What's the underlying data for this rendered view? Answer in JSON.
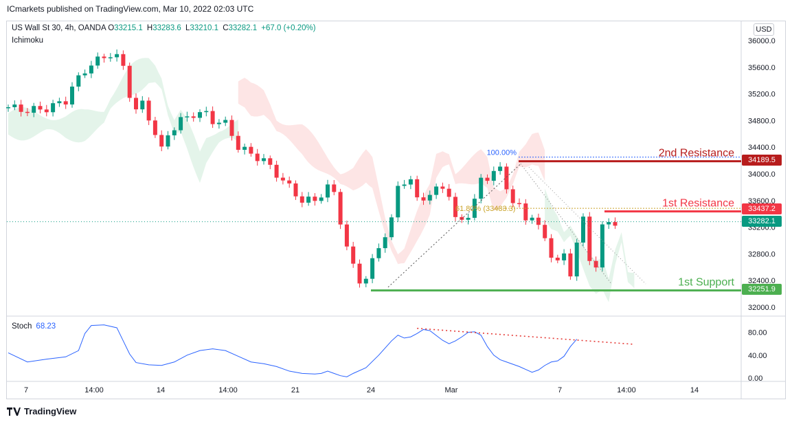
{
  "header": {
    "publisher": "ICmarkets published on TradingView.com, Mar 10, 2022 02:03 UTC"
  },
  "legend": {
    "symbol": "US Wall St 30, 4h, OANDA",
    "o_key": "O",
    "o_val": "33215.1",
    "h_key": "H",
    "h_val": "33283.6",
    "l_key": "L",
    "l_val": "33210.1",
    "c_key": "C",
    "c_val": "33282.1",
    "change": "+67.0 (+0.20%)",
    "indicator": "Ichimoku"
  },
  "currency_button": "USD",
  "stoch": {
    "label": "Stoch",
    "value": "68.23"
  },
  "brand": {
    "name": "TradingView"
  },
  "colors": {
    "up": "#089981",
    "down": "#f23645",
    "cloud_bull": "#dff2e6",
    "cloud_bear": "#fde0e0",
    "resistance2": "#b71c1c",
    "resistance1": "#f23645",
    "support": "#4caf50",
    "stoch_line": "#2962ff",
    "fib_100": "#2962ff",
    "fib_618": "#c9a227"
  },
  "chart_data": [
    {
      "type": "candlestick",
      "title": "US Wall St 30, 4h, OANDA",
      "ylim": [
        31800,
        36200
      ],
      "y_ticks": [
        "36000.0",
        "35600.0",
        "35200.0",
        "34800.0",
        "34400.0",
        "34000.0",
        "33600.0",
        "33200.0",
        "32800.0",
        "32400.0",
        "32000.0"
      ],
      "x_ticks": [
        "7",
        "14:00",
        "14",
        "14:00",
        "21",
        "24",
        "Mar",
        "7",
        "14:00",
        "14"
      ],
      "close_path": [
        [
          0,
          35000
        ],
        [
          3,
          34950
        ],
        [
          6,
          34980
        ],
        [
          9,
          35100
        ],
        [
          10,
          35300
        ],
        [
          12,
          35550
        ],
        [
          13,
          35650
        ],
        [
          15,
          35750
        ],
        [
          16,
          35800
        ],
        [
          17,
          35750
        ],
        [
          18,
          35600
        ],
        [
          19,
          35200
        ],
        [
          20,
          34950
        ],
        [
          21,
          35050
        ],
        [
          22,
          34850
        ],
        [
          23,
          34600
        ],
        [
          24,
          34350
        ],
        [
          25,
          34600
        ],
        [
          27,
          34800
        ],
        [
          29,
          34900
        ],
        [
          31,
          34900
        ],
        [
          32,
          34800
        ],
        [
          34,
          34750
        ],
        [
          35,
          34600
        ],
        [
          36,
          34400
        ],
        [
          38,
          34300
        ],
        [
          40,
          34200
        ],
        [
          42,
          34000
        ],
        [
          44,
          33800
        ],
        [
          46,
          33600
        ],
        [
          48,
          33600
        ],
        [
          50,
          33800
        ],
        [
          51,
          33700
        ],
        [
          52,
          33300
        ],
        [
          53,
          32900
        ],
        [
          54,
          32600
        ],
        [
          55,
          32400
        ],
        [
          56,
          32450
        ],
        [
          58,
          32900
        ],
        [
          60,
          33300
        ],
        [
          61,
          33800
        ],
        [
          62,
          33900
        ],
        [
          63,
          33900
        ],
        [
          64,
          33600
        ],
        [
          66,
          33700
        ],
        [
          68,
          33800
        ],
        [
          69,
          33700
        ],
        [
          70,
          33300
        ],
        [
          71,
          33300
        ],
        [
          72,
          33400
        ],
        [
          73,
          33600
        ],
        [
          74,
          33900
        ],
        [
          75,
          33950
        ],
        [
          76,
          34050
        ],
        [
          77,
          34050
        ],
        [
          78,
          33800
        ],
        [
          79,
          33600
        ],
        [
          80,
          33500
        ],
        [
          81,
          33300
        ],
        [
          82,
          33400
        ],
        [
          83,
          33200
        ],
        [
          84,
          33000
        ],
        [
          85,
          32800
        ],
        [
          86,
          32700
        ],
        [
          87,
          32750
        ],
        [
          88,
          32500
        ],
        [
          89,
          33000
        ],
        [
          90,
          33300
        ],
        [
          91,
          32700
        ],
        [
          92,
          32650
        ],
        [
          93,
          33200
        ],
        [
          94,
          33250
        ],
        [
          95,
          33282
        ]
      ],
      "cloud_segments": [
        {
          "kind": "bull",
          "from": 0,
          "to": 36
        },
        {
          "kind": "bear",
          "from": 36,
          "to": 84
        },
        {
          "kind": "bull",
          "from": 84,
          "to": 98
        }
      ],
      "levels": [
        {
          "label": "2nd Resistance",
          "value": 34189.5,
          "tag": "34189.5",
          "color": "#b71c1c"
        },
        {
          "label": "1st Resistance",
          "value": 33437.2,
          "tag": "33437.2",
          "color": "#f23645"
        },
        {
          "label": "1st Support",
          "value": 32251.9,
          "tag": "32251.9",
          "color": "#4caf50"
        }
      ],
      "last_price": {
        "value": 33282.1,
        "tag": "33282.1",
        "color": "#089981"
      },
      "fib": [
        {
          "label": "100.00%",
          "value": 34189.5
        },
        {
          "label": "61.80%",
          "value": 33483.3,
          "detail": "(33483.3)"
        }
      ]
    },
    {
      "type": "line",
      "title": "Stoch",
      "ylim": [
        0,
        100
      ],
      "y_ticks": [
        "80.00",
        "40.00",
        "0.00"
      ],
      "series": [
        {
          "name": "Stoch",
          "values": [
            [
              0,
              44
            ],
            [
              3,
              28
            ],
            [
              6,
              33
            ],
            [
              9,
              37
            ],
            [
              11,
              48
            ],
            [
              12,
              78
            ],
            [
              13,
              92
            ],
            [
              15,
              93
            ],
            [
              17,
              88
            ],
            [
              18,
              65
            ],
            [
              19,
              42
            ],
            [
              20,
              27
            ],
            [
              22,
              23
            ],
            [
              24,
              22
            ],
            [
              26,
              28
            ],
            [
              28,
              40
            ],
            [
              30,
              48
            ],
            [
              32,
              51
            ],
            [
              34,
              48
            ],
            [
              36,
              38
            ],
            [
              38,
              28
            ],
            [
              40,
              25
            ],
            [
              42,
              20
            ],
            [
              44,
              12
            ],
            [
              46,
              8
            ],
            [
              48,
              7
            ],
            [
              49,
              8
            ],
            [
              50,
              12
            ],
            [
              51,
              8
            ],
            [
              52,
              4
            ],
            [
              53,
              2
            ],
            [
              54,
              8
            ],
            [
              56,
              18
            ],
            [
              58,
              40
            ],
            [
              60,
              65
            ],
            [
              61,
              75
            ],
            [
              62,
              70
            ],
            [
              63,
              72
            ],
            [
              64,
              78
            ],
            [
              65,
              85
            ],
            [
              66,
              83
            ],
            [
              68,
              66
            ],
            [
              69,
              60
            ],
            [
              70,
              65
            ],
            [
              71,
              72
            ],
            [
              72,
              80
            ],
            [
              73,
              81
            ],
            [
              74,
              75
            ],
            [
              75,
              55
            ],
            [
              76,
              40
            ],
            [
              77,
              32
            ],
            [
              78,
              28
            ],
            [
              80,
              20
            ],
            [
              81,
              15
            ],
            [
              82,
              10
            ],
            [
              83,
              14
            ],
            [
              84,
              22
            ],
            [
              85,
              28
            ],
            [
              86,
              30
            ],
            [
              87,
              38
            ],
            [
              88,
              55
            ],
            [
              89,
              68
            ]
          ]
        }
      ],
      "trendline": {
        "from": [
          64,
          87
        ],
        "to": [
          98,
          59
        ]
      }
    }
  ]
}
